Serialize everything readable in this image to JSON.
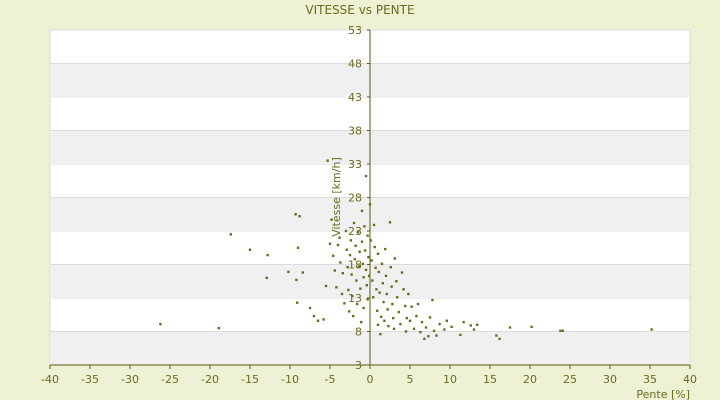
{
  "chart_data": {
    "type": "scatter",
    "title": "VITESSE vs PENTE",
    "xlabel": "Pente [%]",
    "ylabel": "Vitesse [km/h]",
    "xlim": [
      -40,
      40
    ],
    "ylim": [
      3,
      53
    ],
    "x_ticks": [
      -40,
      -35,
      -30,
      -25,
      -20,
      -15,
      -10,
      -5,
      0,
      5,
      10,
      15,
      20,
      25,
      30,
      35,
      40
    ],
    "y_ticks": [
      3,
      8,
      13,
      18,
      23,
      28,
      33,
      38,
      43,
      48,
      53
    ],
    "grid": "horizontal bands",
    "colors": {
      "background": "#eef1d3",
      "plot": "#ffffff",
      "band": "#f0f0f0",
      "marker": "#6b6b1e",
      "axis": "#5a5a10"
    },
    "points": [
      [
        -26.2,
        9.1
      ],
      [
        -18.9,
        8.5
      ],
      [
        -17.4,
        22.5
      ],
      [
        -15.0,
        20.2
      ],
      [
        -12.8,
        19.4
      ],
      [
        -12.9,
        16.0
      ],
      [
        -10.2,
        16.9
      ],
      [
        -9.3,
        25.5
      ],
      [
        -8.8,
        25.2
      ],
      [
        -9.0,
        20.5
      ],
      [
        -9.2,
        15.7
      ],
      [
        -9.1,
        12.3
      ],
      [
        -8.4,
        16.8
      ],
      [
        -7.5,
        11.5
      ],
      [
        -7.0,
        10.3
      ],
      [
        -6.5,
        9.6
      ],
      [
        -5.8,
        9.8
      ],
      [
        -5.5,
        14.8
      ],
      [
        -5.3,
        33.5
      ],
      [
        -5.0,
        21.1
      ],
      [
        -4.8,
        24.7
      ],
      [
        -4.6,
        19.3
      ],
      [
        -4.4,
        17.1
      ],
      [
        -4.2,
        14.6
      ],
      [
        -4.0,
        20.9
      ],
      [
        -3.8,
        22.0
      ],
      [
        -3.7,
        18.3
      ],
      [
        -3.5,
        13.6
      ],
      [
        -3.4,
        16.7
      ],
      [
        -3.2,
        12.2
      ],
      [
        -3.0,
        23.0
      ],
      [
        -2.9,
        20.2
      ],
      [
        -2.8,
        17.6
      ],
      [
        -2.7,
        14.2
      ],
      [
        -2.6,
        11.0
      ],
      [
        -2.5,
        19.4
      ],
      [
        -2.4,
        21.6
      ],
      [
        -2.3,
        16.5
      ],
      [
        -2.2,
        13.3
      ],
      [
        -2.1,
        10.3
      ],
      [
        -2.0,
        24.2
      ],
      [
        -1.9,
        18.8
      ],
      [
        -1.8,
        20.8
      ],
      [
        -1.7,
        15.6
      ],
      [
        -1.6,
        12.1
      ],
      [
        -1.5,
        22.8
      ],
      [
        -1.4,
        17.7
      ],
      [
        -1.3,
        19.9
      ],
      [
        -1.2,
        14.4
      ],
      [
        -1.1,
        9.4
      ],
      [
        -1.0,
        26.0
      ],
      [
        -1.0,
        21.4
      ],
      [
        -0.9,
        18.1
      ],
      [
        -0.8,
        16.1
      ],
      [
        -0.8,
        11.5
      ],
      [
        -0.7,
        23.7
      ],
      [
        -0.6,
        20.1
      ],
      [
        -0.5,
        31.2
      ],
      [
        -0.5,
        17.2
      ],
      [
        -0.4,
        14.9
      ],
      [
        -0.3,
        22.3
      ],
      [
        -0.3,
        12.8
      ],
      [
        -0.2,
        19.1
      ],
      [
        -0.1,
        16.3
      ],
      [
        0.0,
        27.0
      ],
      [
        0.1,
        21.6
      ],
      [
        0.2,
        18.6
      ],
      [
        0.3,
        15.6
      ],
      [
        0.4,
        13.1
      ],
      [
        0.5,
        23.9
      ],
      [
        0.6,
        20.6
      ],
      [
        0.7,
        17.5
      ],
      [
        0.8,
        14.3
      ],
      [
        0.9,
        11.1
      ],
      [
        1.0,
        9.0
      ],
      [
        1.0,
        19.6
      ],
      [
        1.1,
        16.9
      ],
      [
        1.2,
        13.8
      ],
      [
        1.3,
        7.6
      ],
      [
        1.4,
        10.2
      ],
      [
        1.5,
        18.1
      ],
      [
        1.6,
        15.2
      ],
      [
        1.7,
        12.4
      ],
      [
        1.8,
        9.6
      ],
      [
        1.9,
        20.3
      ],
      [
        2.0,
        16.3
      ],
      [
        2.1,
        13.6
      ],
      [
        2.2,
        11.3
      ],
      [
        2.3,
        8.8
      ],
      [
        2.5,
        24.3
      ],
      [
        2.6,
        17.6
      ],
      [
        2.7,
        14.7
      ],
      [
        2.8,
        12.1
      ],
      [
        2.9,
        10.0
      ],
      [
        3.0,
        8.4
      ],
      [
        3.1,
        18.9
      ],
      [
        3.3,
        15.5
      ],
      [
        3.4,
        13.1
      ],
      [
        3.6,
        10.9
      ],
      [
        3.8,
        9.1
      ],
      [
        4.0,
        16.8
      ],
      [
        4.2,
        14.3
      ],
      [
        4.4,
        11.8
      ],
      [
        4.5,
        8.0
      ],
      [
        4.6,
        10.0
      ],
      [
        4.8,
        13.6
      ],
      [
        5.0,
        9.6
      ],
      [
        5.2,
        11.7
      ],
      [
        5.5,
        8.4
      ],
      [
        5.8,
        10.3
      ],
      [
        6.0,
        12.1
      ],
      [
        6.3,
        7.9
      ],
      [
        6.5,
        9.4
      ],
      [
        6.8,
        6.9
      ],
      [
        7.0,
        8.6
      ],
      [
        7.3,
        7.3
      ],
      [
        7.5,
        10.1
      ],
      [
        7.8,
        12.7
      ],
      [
        8.0,
        8.1
      ],
      [
        8.3,
        7.4
      ],
      [
        8.7,
        9.1
      ],
      [
        9.3,
        8.3
      ],
      [
        9.6,
        9.6
      ],
      [
        10.2,
        8.7
      ],
      [
        11.3,
        7.5
      ],
      [
        11.7,
        9.4
      ],
      [
        12.6,
        8.9
      ],
      [
        13.0,
        8.3
      ],
      [
        13.4,
        9.0
      ],
      [
        15.8,
        7.4
      ],
      [
        16.2,
        6.9
      ],
      [
        17.5,
        8.6
      ],
      [
        20.2,
        8.7
      ],
      [
        23.8,
        8.1
      ],
      [
        24.1,
        8.1
      ],
      [
        35.2,
        8.3
      ]
    ]
  }
}
